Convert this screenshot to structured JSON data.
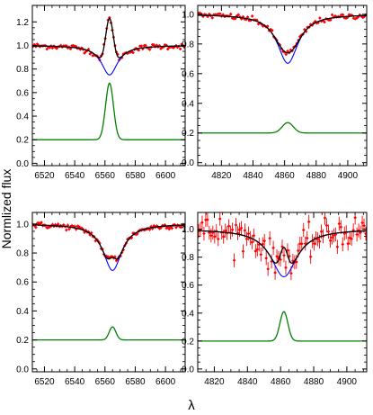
{
  "figure": {
    "ylabel": "Normlized flux",
    "xlabel": "λ"
  },
  "colors": {
    "observed": "#ff0000",
    "model": "#000000",
    "photospheric": "#0000ff",
    "emission": "#008000",
    "frame": "#000000"
  },
  "chart_data": [
    {
      "type": "line",
      "panel": "top-left",
      "xlim": [
        6512,
        6613
      ],
      "ylim": [
        -0.02,
        1.34
      ],
      "xticks": [
        6520,
        6540,
        6560,
        6580,
        6600
      ],
      "yticks": [
        0.0,
        0.2,
        0.4,
        0.6,
        0.8,
        1.0,
        1.2
      ],
      "ytick_labels": [
        "0.0",
        "0.2",
        "0.4",
        "0.6",
        "0.8",
        "1.0",
        "1.2"
      ],
      "line": {
        "center": 6563,
        "continuum": 1.0,
        "abs_depth": 0.25,
        "abs_width": 6.5,
        "em_amp": 0.48,
        "em_sigma": 2.6,
        "em_base": 0.2,
        "model_peak": 1.24,
        "noise": 0.012,
        "err": 0.012,
        "npts": 110
      },
      "series": [
        {
          "key": "observed",
          "style": "red points with error bars"
        },
        {
          "key": "model",
          "style": "black line"
        },
        {
          "key": "photospheric",
          "style": "blue line"
        },
        {
          "key": "emission",
          "style": "green line"
        }
      ]
    },
    {
      "type": "line",
      "panel": "top-right",
      "xlim": [
        4805,
        4912
      ],
      "ylim": [
        -0.02,
        1.06
      ],
      "xticks": [
        4820,
        4840,
        4860,
        4880,
        4900
      ],
      "yticks": [
        0.0,
        0.2,
        0.4,
        0.6,
        0.8,
        1.0
      ],
      "ytick_labels": [
        "0.0",
        "0.2",
        "0.4",
        "0.6",
        "0.8",
        "1.0"
      ],
      "line": {
        "center": 4862,
        "continuum": 1.0,
        "abs_depth": 0.33,
        "abs_width": 8.0,
        "em_amp": 0.07,
        "em_sigma": 3.5,
        "em_base": 0.2,
        "model_peak": 0.74,
        "noise": 0.01,
        "err": 0.01,
        "npts": 110
      },
      "series": [
        {
          "key": "observed",
          "style": "red points with error bars"
        },
        {
          "key": "model",
          "style": "black line"
        },
        {
          "key": "photospheric",
          "style": "blue line"
        },
        {
          "key": "emission",
          "style": "green line"
        }
      ]
    },
    {
      "type": "line",
      "panel": "bottom-left",
      "xlim": [
        6512,
        6613
      ],
      "ylim": [
        -0.02,
        1.08
      ],
      "xticks": [
        6520,
        6540,
        6560,
        6580,
        6600
      ],
      "yticks": [
        0.0,
        0.2,
        0.4,
        0.6,
        0.8,
        1.0
      ],
      "ytick_labels": [
        "0.0",
        "0.2",
        "0.4",
        "0.6",
        "0.8",
        "1.0"
      ],
      "line": {
        "center": 6565,
        "continuum": 1.0,
        "abs_depth": 0.32,
        "abs_width": 7.5,
        "em_amp": 0.09,
        "em_sigma": 2.2,
        "em_base": 0.2,
        "model_peak": 0.76,
        "noise": 0.01,
        "err": 0.012,
        "npts": 110
      },
      "series": [
        {
          "key": "observed",
          "style": "red points with error bars"
        },
        {
          "key": "model",
          "style": "black line"
        },
        {
          "key": "photospheric",
          "style": "blue line"
        },
        {
          "key": "emission",
          "style": "green line"
        }
      ]
    },
    {
      "type": "line",
      "panel": "bottom-right",
      "xlim": [
        4810,
        4912
      ],
      "ylim": [
        -0.02,
        1.12
      ],
      "xticks": [
        4820,
        4840,
        4860,
        4880,
        4900
      ],
      "yticks": [
        0.0,
        0.2,
        0.4,
        0.6,
        0.8,
        1.0
      ],
      "ytick_labels": [
        "0.0",
        "0.2",
        "0.4",
        "0.6",
        "0.8",
        "1.0"
      ],
      "line": {
        "center": 4862,
        "continuum": 1.0,
        "abs_depth": 0.34,
        "abs_width": 9.5,
        "em_amp": 0.21,
        "em_sigma": 2.4,
        "em_base": 0.2,
        "model_peak": 0.73,
        "noise": 0.055,
        "err": 0.05,
        "npts": 95
      },
      "series": [
        {
          "key": "observed",
          "style": "red points with error bars"
        },
        {
          "key": "model",
          "style": "black line"
        },
        {
          "key": "photospheric",
          "style": "blue line"
        },
        {
          "key": "emission",
          "style": "green line"
        }
      ]
    }
  ]
}
